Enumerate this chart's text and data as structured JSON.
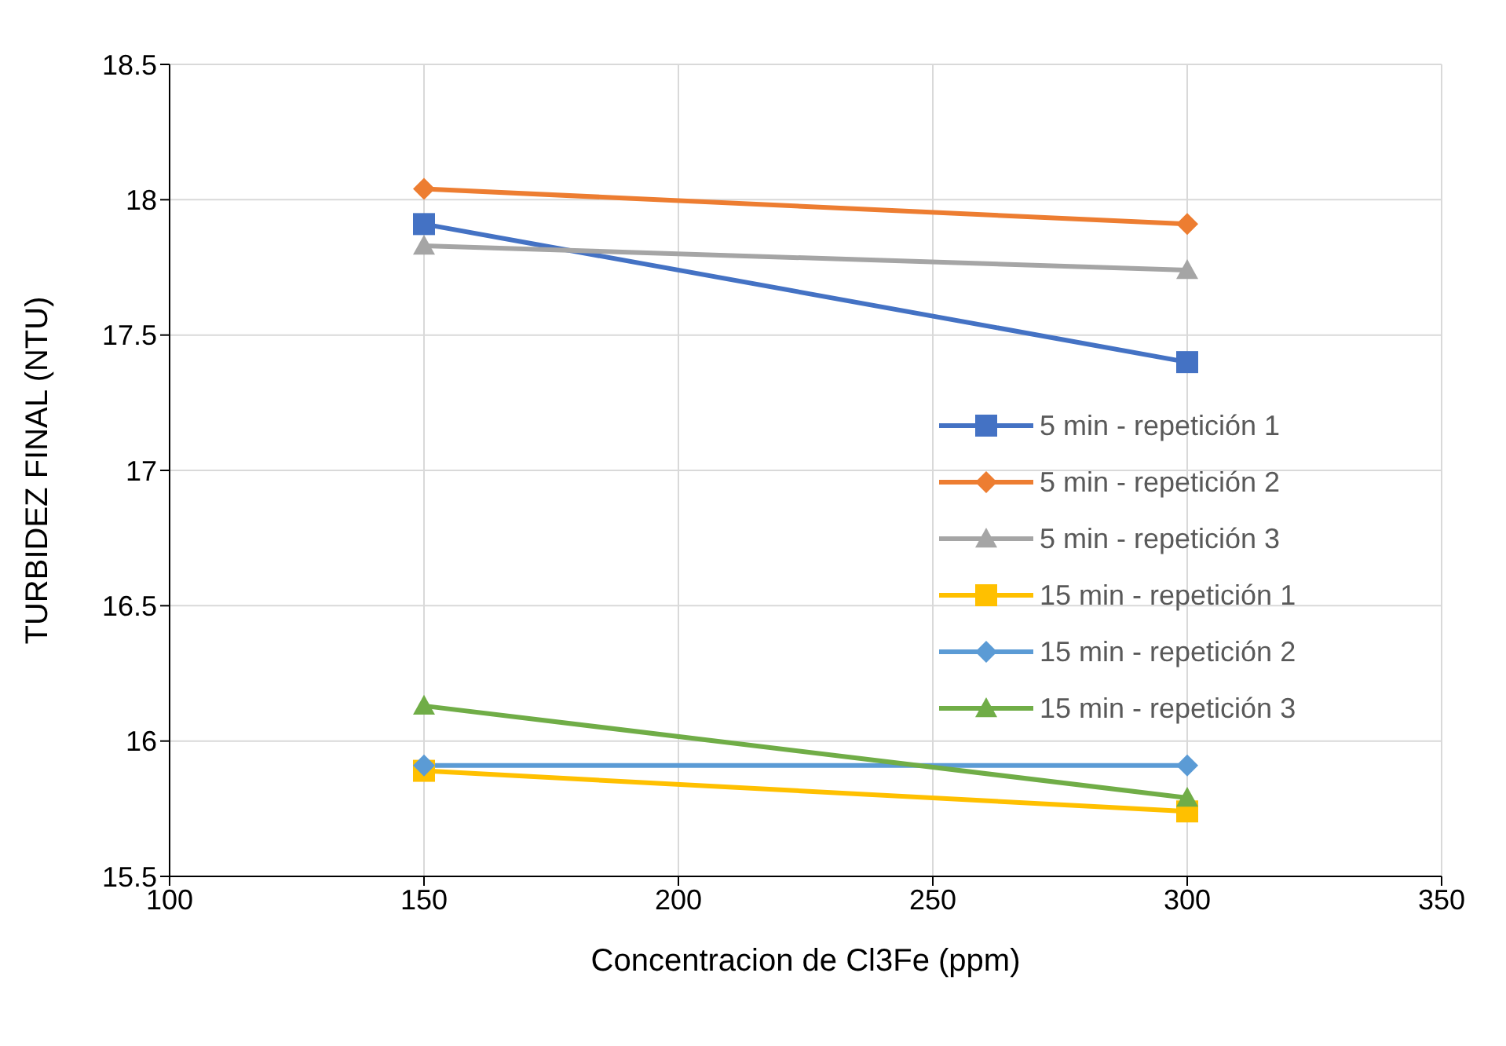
{
  "chart_data": {
    "type": "line",
    "xlabel": "Concentracion de Cl3Fe (ppm)",
    "ylabel": "TURBIDEZ FINAL (NTU)",
    "x": [
      150,
      300
    ],
    "xlim": [
      100,
      350
    ],
    "xticks": [
      100,
      150,
      200,
      250,
      300,
      350
    ],
    "ylim": [
      15.5,
      18.5
    ],
    "yticks": [
      15.5,
      16,
      16.5,
      17,
      17.5,
      18,
      18.5
    ],
    "grid": true,
    "legend": "right",
    "series": [
      {
        "name": "5 min - repetición 1",
        "color": "#4472c4",
        "marker": "square",
        "values": [
          17.91,
          17.4
        ]
      },
      {
        "name": "5 min - repetición 2",
        "color": "#ed7d31",
        "marker": "diamond",
        "values": [
          18.04,
          17.91
        ]
      },
      {
        "name": "5 min - repetición 3",
        "color": "#a5a5a5",
        "marker": "triangle",
        "values": [
          17.83,
          17.74
        ]
      },
      {
        "name": "15 min - repetición 1",
        "color": "#ffc000",
        "marker": "square",
        "values": [
          15.89,
          15.74
        ]
      },
      {
        "name": "15 min - repetición 2",
        "color": "#5b9bd5",
        "marker": "diamond",
        "values": [
          15.91,
          15.91
        ]
      },
      {
        "name": "15 min - repetición 3",
        "color": "#70ad47",
        "marker": "triangle",
        "values": [
          16.13,
          15.79
        ]
      }
    ]
  }
}
